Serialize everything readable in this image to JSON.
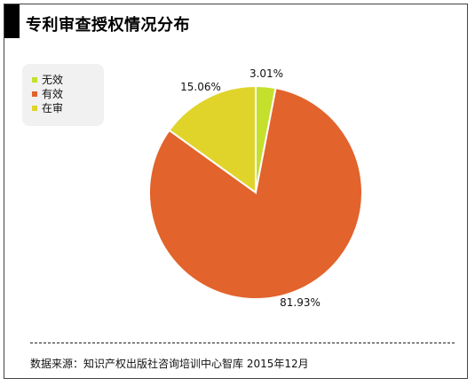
{
  "title": "专利审查授权情况分布",
  "source_note": "数据来源：知识产权出版社咨询培训中心智库 2015年12月",
  "chart_data": {
    "type": "pie",
    "title": "专利审查授权情况分布",
    "legend_position": "top-left",
    "slices": [
      {
        "label": "无效",
        "value": 3.01,
        "display": "3.01%",
        "color": "#c5df2d"
      },
      {
        "label": "有效",
        "value": 81.93,
        "display": "81.93%",
        "color": "#e2632c"
      },
      {
        "label": "在审",
        "value": 15.06,
        "display": "15.06%",
        "color": "#e0d42b"
      }
    ]
  }
}
